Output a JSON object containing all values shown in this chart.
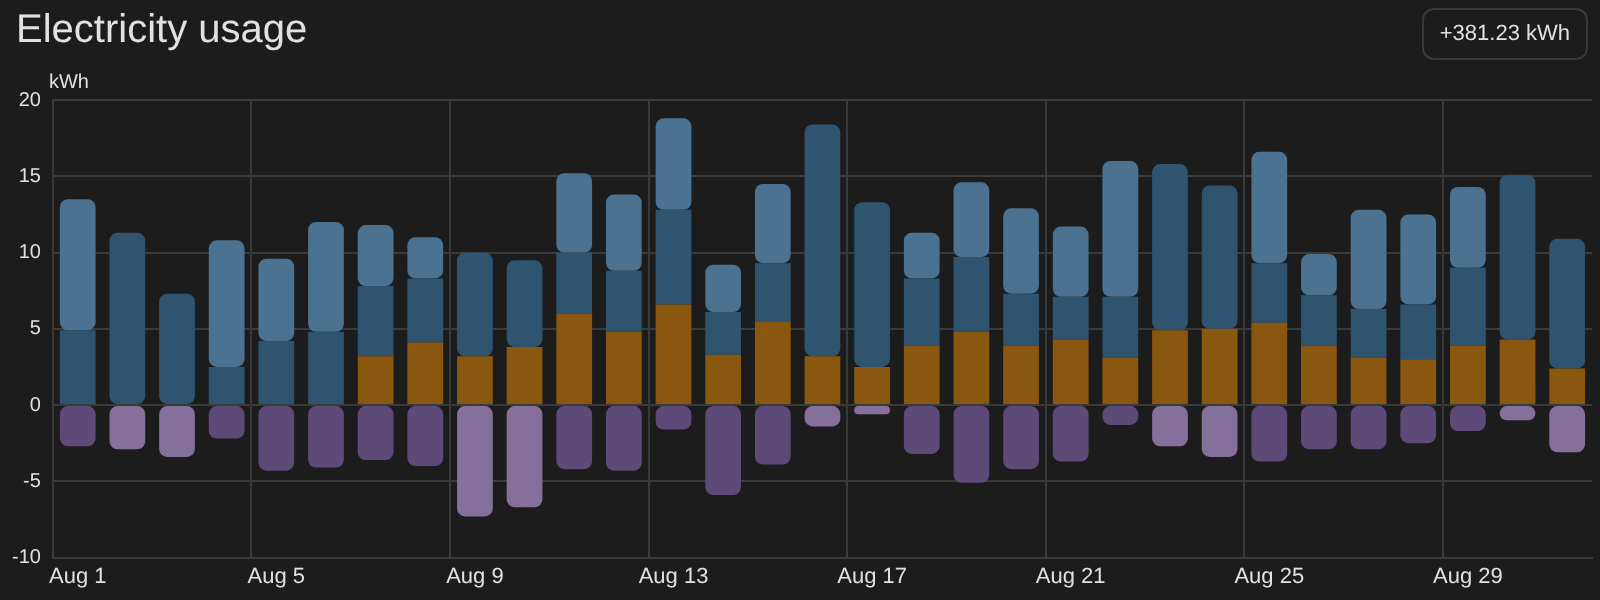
{
  "chart_data": {
    "type": "bar",
    "title": "Electricity usage",
    "ylabel": "kWh",
    "annotations": [
      "+381.23 kWh"
    ],
    "categories": [
      "Aug 1",
      null,
      null,
      null,
      "Aug 5",
      null,
      null,
      null,
      "Aug 9",
      null,
      null,
      null,
      "Aug 13",
      null,
      null,
      null,
      "Aug 17",
      null,
      null,
      null,
      "Aug 21",
      null,
      null,
      null,
      "Aug 25",
      null,
      null,
      null,
      "Aug 29",
      null,
      null
    ],
    "stacked": true,
    "series": [
      {
        "color": "#8a5710",
        "values": [
          null,
          null,
          null,
          null,
          null,
          null,
          3.2,
          4.1,
          3.2,
          3.8,
          6.0,
          4.8,
          6.6,
          3.3,
          5.5,
          3.2,
          2.5,
          3.9,
          4.8,
          3.9,
          4.3,
          3.1,
          4.9,
          5.0,
          5.4,
          3.9,
          3.1,
          3.0,
          3.9,
          4.3,
          2.4
        ]
      },
      {
        "color": "#2e5470",
        "values": [
          4.9,
          11.3,
          7.3,
          2.5,
          4.2,
          4.8,
          4.6,
          4.2,
          6.8,
          5.7,
          4.0,
          4.0,
          6.2,
          2.8,
          3.8,
          15.2,
          10.8,
          4.4,
          4.9,
          3.4,
          2.8,
          4.0,
          10.9,
          9.4,
          3.9,
          3.3,
          3.2,
          3.6,
          5.1,
          10.8,
          8.5
        ]
      },
      {
        "color": "#4b7391",
        "values": [
          8.6,
          null,
          null,
          8.3,
          5.4,
          7.2,
          4.0,
          2.7,
          null,
          null,
          5.2,
          5.0,
          6.0,
          3.1,
          5.2,
          null,
          null,
          3.0,
          4.9,
          5.6,
          4.6,
          8.9,
          null,
          null,
          7.3,
          2.7,
          6.5,
          5.9,
          5.3,
          null,
          null
        ]
      },
      {
        "color": "#5d4a78",
        "values": [
          -2.7,
          null,
          null,
          -2.2,
          -4.3,
          -4.1,
          -3.6,
          -4.0,
          null,
          null,
          -4.2,
          -4.3,
          -1.6,
          -5.9,
          -3.9,
          null,
          null,
          -3.2,
          -5.1,
          -4.2,
          -3.7,
          -1.3,
          null,
          null,
          -3.7,
          -2.9,
          -2.9,
          -2.5,
          -1.7,
          null,
          null
        ]
      },
      {
        "color": "#85709c",
        "values": [
          null,
          -2.9,
          -3.4,
          null,
          null,
          null,
          null,
          null,
          -7.3,
          -6.7,
          null,
          null,
          null,
          null,
          null,
          -1.4,
          -0.6,
          null,
          null,
          null,
          null,
          null,
          -2.7,
          -3.4,
          null,
          null,
          null,
          null,
          null,
          -1.0,
          -3.1
        ]
      }
    ],
    "ylim": [
      -10,
      20
    ],
    "yticks": [
      -10,
      -5,
      0,
      5,
      10,
      15,
      20
    ],
    "grid": true
  }
}
